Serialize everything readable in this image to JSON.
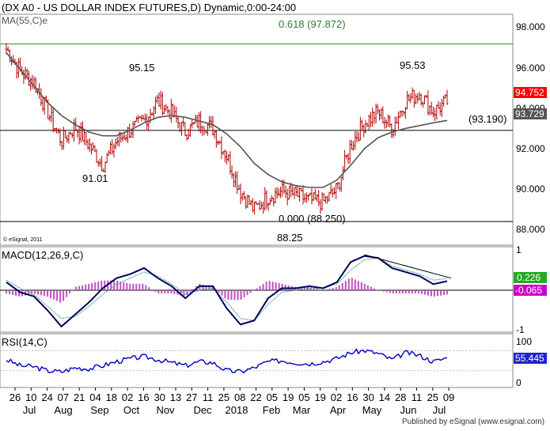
{
  "header": {
    "title": "(DX A0 - US DOLLAR INDEX FUTURES,D) Dynamic,0:00-24:00",
    "ma_label": "MA(55,C)e",
    "copyright": "© eSignal, 2011",
    "footer": "Published by eSignal (www.esignal.com)"
  },
  "colors": {
    "price_bars": "#b00000",
    "ma_line": "#555555",
    "fib_line": "#2e8b2e",
    "support_line": "#000000",
    "macd_line": "#000060",
    "signal_line": "#3aa07a",
    "histogram": "#c050c0",
    "rsi_line": "#0000c0",
    "last_price_box": "#ff0000",
    "ma_box": "#555555",
    "macd_box": "#22aa22",
    "signal_box": "#cc00cc",
    "rsi_box": "#2222cc"
  },
  "chart_data": [
    {
      "type": "candlestick",
      "panel": "price",
      "ylim": [
        87.4,
        99.4
      ],
      "yticks": [
        88.0,
        90.0,
        92.0,
        94.0,
        96.0,
        98.0
      ],
      "x_dates": [
        "Jun 26",
        "Jul 10",
        "Jul 24",
        "Aug 07",
        "Aug 21",
        "Sep 04",
        "Sep 18",
        "Oct 02",
        "Oct 16",
        "Oct 30",
        "Nov 13",
        "Nov 27",
        "Dec 11",
        "Dec 25",
        "2018 Jan 08",
        "Jan 22",
        "Feb 05",
        "Feb 19",
        "Mar 05",
        "Mar 19",
        "Apr 02",
        "Apr 16",
        "Apr 30",
        "May 14",
        "May 28",
        "Jun 11",
        "Jun 25",
        "Jul 09"
      ],
      "close_series": [
        97.6,
        96.4,
        95.8,
        94.2,
        92.6,
        93.4,
        92.4,
        91.3,
        92.6,
        93.2,
        93.7,
        94.8,
        94.1,
        93.1,
        93.7,
        93.3,
        91.8,
        89.9,
        88.9,
        89.6,
        89.9,
        89.7,
        89.4,
        89.3,
        90.0,
        92.4,
        93.6,
        94.2,
        93.3,
        94.8,
        95.2,
        94.2,
        94.75
      ],
      "ma_series": [
        97.4,
        96.5,
        95.6,
        94.7,
        94.0,
        93.5,
        93.1,
        92.9,
        92.9,
        93.2,
        93.6,
        93.9,
        94.0,
        93.9,
        93.7,
        93.5,
        93.0,
        92.3,
        91.4,
        90.8,
        90.4,
        90.2,
        90.1,
        90.1,
        90.5,
        91.3,
        92.2,
        92.8,
        93.1,
        93.3,
        93.45,
        93.6,
        93.73
      ],
      "annotations": [
        {
          "label": "95.15",
          "value": 95.15
        },
        {
          "label": "91.01",
          "value": 91.01
        },
        {
          "label": "95.53",
          "value": 95.53
        },
        {
          "label": "0.618 (97.872)",
          "value": 97.872
        },
        {
          "label": "(93.190)",
          "value": 93.19
        },
        {
          "label": "0.000 (88.250)",
          "value": 88.25
        },
        {
          "label": "88.25",
          "value": 88.25
        }
      ],
      "last_price": "94.752",
      "ma_value": "93.729"
    },
    {
      "type": "line",
      "panel": "macd",
      "title": "MACD(12,26,9,C)",
      "ylim": [
        -1.0,
        1.0
      ],
      "yticks": [
        1,
        -1
      ],
      "macd_series": [
        0.2,
        -0.05,
        -0.15,
        -0.5,
        -0.9,
        -0.6,
        -0.3,
        0.05,
        0.3,
        0.4,
        0.55,
        0.3,
        0.1,
        -0.2,
        0.1,
        0.1,
        -0.45,
        -0.85,
        -0.75,
        -0.2,
        0.05,
        0.05,
        0.1,
        0.05,
        0.2,
        0.7,
        0.85,
        0.8,
        0.55,
        0.45,
        0.35,
        0.15,
        0.226
      ],
      "signal_series": [
        0.25,
        0.05,
        -0.1,
        -0.4,
        -0.7,
        -0.65,
        -0.4,
        -0.1,
        0.15,
        0.3,
        0.45,
        0.35,
        0.15,
        -0.1,
        0.0,
        0.05,
        -0.3,
        -0.7,
        -0.75,
        -0.35,
        -0.05,
        0.0,
        0.05,
        0.05,
        0.15,
        0.5,
        0.75,
        0.8,
        0.6,
        0.5,
        0.4,
        0.25,
        0.291
      ],
      "macd_value": "0.226",
      "hist_value": "-0.065"
    },
    {
      "type": "line",
      "panel": "rsi",
      "title": "RSI(14,C)",
      "ylim": [
        0,
        100
      ],
      "yticks": [
        100,
        50,
        0
      ],
      "series": [
        52,
        40,
        38,
        30,
        28,
        36,
        34,
        40,
        48,
        54,
        58,
        52,
        46,
        40,
        48,
        46,
        30,
        28,
        36,
        48,
        50,
        46,
        44,
        48,
        54,
        66,
        70,
        64,
        52,
        66,
        60,
        48,
        55.445
      ],
      "rsi_value": "55.445"
    }
  ],
  "x_axis": {
    "day_labels": [
      "26",
      "10",
      "24",
      "07",
      "21",
      "04",
      "18",
      "02",
      "16",
      "30",
      "13",
      "27",
      "11",
      "25",
      "08",
      "22",
      "05",
      "19",
      "05",
      "19",
      "02",
      "16",
      "30",
      "14",
      "28",
      "11",
      "25",
      "09"
    ],
    "month_labels": [
      "Jul",
      "Aug",
      "Sep",
      "Oct",
      "Nov",
      "Dec",
      "2018",
      "Feb",
      "Mar",
      "Apr",
      "May",
      "Jun",
      "Jul"
    ]
  },
  "axis_ticks": {
    "price": [
      "98.000",
      "96.000",
      "94.000",
      "92.000",
      "90.000",
      "88.000"
    ],
    "macd": [
      "1",
      "-1"
    ],
    "rsi": [
      "100",
      "0"
    ]
  }
}
